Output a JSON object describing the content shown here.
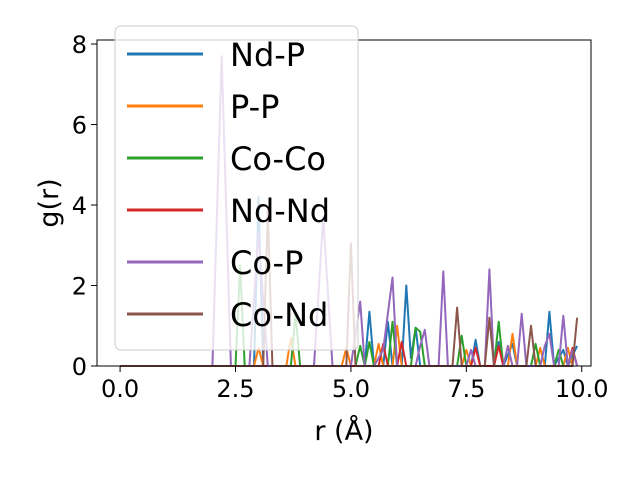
{
  "chart_data": {
    "type": "line",
    "title": "",
    "xlabel": "r (Å)",
    "ylabel": "g(r)",
    "xlim": [
      -0.5,
      10.2
    ],
    "ylim": [
      0,
      8.1
    ],
    "xticks": [
      0.0,
      2.5,
      5.0,
      7.5,
      10.0
    ],
    "xtick_labels": [
      "0.0",
      "2.5",
      "5.0",
      "7.5",
      "10.0"
    ],
    "yticks": [
      0,
      2,
      4,
      6,
      8
    ],
    "ytick_labels": [
      "0",
      "2",
      "4",
      "6",
      "8"
    ],
    "grid": false,
    "legend_position": "upper-left",
    "series": [
      {
        "name": "Nd-P",
        "color": "#1f77b4",
        "points": [
          [
            0,
            0
          ],
          [
            2.9,
            0
          ],
          [
            3.0,
            4.2
          ],
          [
            3.1,
            0
          ],
          [
            5.3,
            0
          ],
          [
            5.4,
            1.35
          ],
          [
            5.5,
            0
          ],
          [
            5.7,
            0
          ],
          [
            5.8,
            1.1
          ],
          [
            5.9,
            0
          ],
          [
            6.1,
            0
          ],
          [
            6.2,
            2.0
          ],
          [
            6.3,
            0.2
          ],
          [
            6.4,
            0.95
          ],
          [
            6.5,
            0
          ],
          [
            7.6,
            0
          ],
          [
            7.7,
            0.65
          ],
          [
            7.8,
            0
          ],
          [
            8.1,
            0
          ],
          [
            8.2,
            0.6
          ],
          [
            8.3,
            0
          ],
          [
            8.5,
            0.55
          ],
          [
            8.6,
            0
          ],
          [
            9.2,
            0
          ],
          [
            9.3,
            1.35
          ],
          [
            9.4,
            0
          ],
          [
            9.6,
            0.4
          ],
          [
            9.7,
            0
          ],
          [
            9.9,
            0.5
          ]
        ]
      },
      {
        "name": "P-P",
        "color": "#ff7f0e",
        "points": [
          [
            0,
            0
          ],
          [
            2.9,
            0
          ],
          [
            3.0,
            0.45
          ],
          [
            3.1,
            0
          ],
          [
            3.6,
            0
          ],
          [
            3.7,
            0.7
          ],
          [
            3.8,
            0
          ],
          [
            4.8,
            0
          ],
          [
            4.9,
            0.45
          ],
          [
            5.0,
            0
          ],
          [
            5.5,
            0
          ],
          [
            5.6,
            0.55
          ],
          [
            5.7,
            0
          ],
          [
            5.9,
            0
          ],
          [
            6.0,
            1.0
          ],
          [
            6.1,
            0
          ],
          [
            7.4,
            0
          ],
          [
            7.5,
            0.4
          ],
          [
            7.6,
            0
          ],
          [
            8.4,
            0
          ],
          [
            8.5,
            0.8
          ],
          [
            8.6,
            0
          ],
          [
            9.0,
            0
          ],
          [
            9.1,
            0.45
          ],
          [
            9.2,
            0
          ],
          [
            9.6,
            0
          ],
          [
            9.7,
            0.45
          ],
          [
            9.8,
            0
          ]
        ]
      },
      {
        "name": "Co-Co",
        "color": "#2ca02c",
        "points": [
          [
            0,
            0
          ],
          [
            2.5,
            0
          ],
          [
            2.6,
            2.5
          ],
          [
            2.7,
            0
          ],
          [
            3.7,
            0
          ],
          [
            3.8,
            1.3
          ],
          [
            3.9,
            0
          ],
          [
            5.1,
            0
          ],
          [
            5.2,
            0.5
          ],
          [
            5.3,
            0
          ],
          [
            5.4,
            0.6
          ],
          [
            5.5,
            0
          ],
          [
            5.8,
            0
          ],
          [
            5.9,
            1.1
          ],
          [
            6.0,
            0
          ],
          [
            6.3,
            0
          ],
          [
            6.4,
            0.95
          ],
          [
            6.5,
            0.85
          ],
          [
            6.6,
            0
          ],
          [
            7.3,
            0
          ],
          [
            7.4,
            0.75
          ],
          [
            7.5,
            0
          ],
          [
            8.1,
            0
          ],
          [
            8.2,
            1.1
          ],
          [
            8.3,
            0
          ],
          [
            8.9,
            0
          ],
          [
            9.0,
            0.55
          ],
          [
            9.1,
            0
          ],
          [
            9.4,
            0
          ],
          [
            9.5,
            0.4
          ],
          [
            9.6,
            0
          ]
        ]
      },
      {
        "name": "Nd-Nd",
        "color": "#d62728",
        "points": [
          [
            0,
            0
          ],
          [
            5.6,
            0
          ],
          [
            5.7,
            0.55
          ],
          [
            5.8,
            0
          ],
          [
            6.0,
            0
          ],
          [
            6.1,
            0.6
          ],
          [
            6.2,
            0
          ],
          [
            7.6,
            0
          ],
          [
            7.7,
            0.45
          ],
          [
            7.8,
            0
          ],
          [
            8.1,
            0
          ],
          [
            8.2,
            0.5
          ],
          [
            8.3,
            0
          ],
          [
            9.7,
            0
          ],
          [
            9.8,
            0.45
          ],
          [
            9.9,
            0
          ]
        ]
      },
      {
        "name": "Co-P",
        "color": "#9467bd",
        "points": [
          [
            0,
            0
          ],
          [
            2.0,
            0
          ],
          [
            2.2,
            7.7
          ],
          [
            2.4,
            0
          ],
          [
            2.8,
            0
          ],
          [
            3.0,
            3.3
          ],
          [
            3.2,
            0
          ],
          [
            4.2,
            0
          ],
          [
            4.4,
            3.7
          ],
          [
            4.6,
            0
          ],
          [
            5.0,
            0
          ],
          [
            5.2,
            1.6
          ],
          [
            5.3,
            0
          ],
          [
            5.5,
            0
          ],
          [
            5.7,
            0.4
          ],
          [
            5.9,
            2.2
          ],
          [
            6.0,
            0
          ],
          [
            6.4,
            0
          ],
          [
            6.5,
            0.5
          ],
          [
            6.6,
            0.9
          ],
          [
            6.7,
            0
          ],
          [
            6.9,
            0
          ],
          [
            7.0,
            2.35
          ],
          [
            7.1,
            0
          ],
          [
            7.5,
            0
          ],
          [
            7.6,
            0.4
          ],
          [
            7.7,
            0
          ],
          [
            7.9,
            0
          ],
          [
            8.0,
            2.4
          ],
          [
            8.1,
            0
          ],
          [
            8.3,
            0
          ],
          [
            8.4,
            0.5
          ],
          [
            8.5,
            0
          ],
          [
            8.6,
            0
          ],
          [
            8.7,
            1.3
          ],
          [
            8.8,
            0
          ],
          [
            9.1,
            0
          ],
          [
            9.2,
            0.5
          ],
          [
            9.3,
            0.8
          ],
          [
            9.4,
            0
          ],
          [
            9.5,
            0
          ],
          [
            9.6,
            1.25
          ],
          [
            9.7,
            0
          ],
          [
            9.8,
            0.4
          ],
          [
            9.9,
            0
          ]
        ]
      },
      {
        "name": "Co-Nd",
        "color": "#8c564b",
        "points": [
          [
            0,
            0
          ],
          [
            3.1,
            0
          ],
          [
            3.2,
            3.9
          ],
          [
            3.3,
            0
          ],
          [
            4.9,
            0
          ],
          [
            5.0,
            3.05
          ],
          [
            5.1,
            0
          ],
          [
            7.2,
            0
          ],
          [
            7.3,
            1.45
          ],
          [
            7.4,
            0
          ],
          [
            7.9,
            0
          ],
          [
            8.0,
            1.2
          ],
          [
            8.1,
            0
          ],
          [
            8.8,
            0
          ],
          [
            8.9,
            1.0
          ],
          [
            9.0,
            0
          ],
          [
            9.8,
            0
          ],
          [
            9.9,
            1.2
          ]
        ]
      }
    ]
  }
}
